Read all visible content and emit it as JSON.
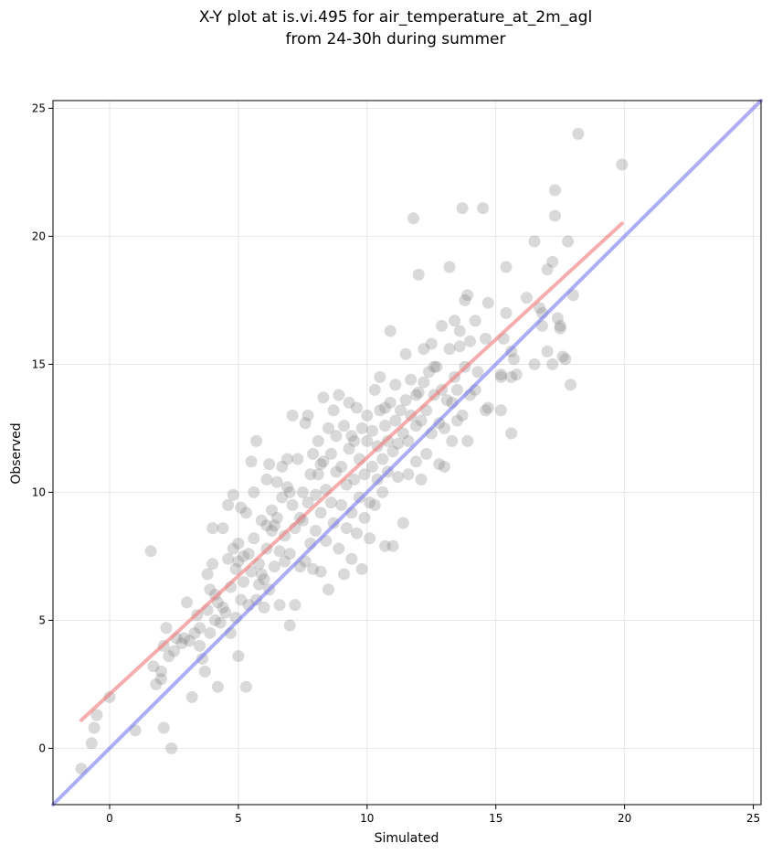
{
  "chart_data": {
    "type": "scatter",
    "title_lines": [
      "X-Y plot at is.vi.495 for air_temperature_at_2m_agl",
      "from 24-30h during summer"
    ],
    "xlabel": "Simulated",
    "ylabel": "Observed",
    "xlim": [
      -2.2,
      25.3
    ],
    "ylim": [
      -2.2,
      25.3
    ],
    "xticks": [
      0,
      5,
      10,
      15,
      20,
      25
    ],
    "yticks": [
      0,
      5,
      10,
      15,
      20,
      25
    ],
    "grid": true,
    "colors": {
      "points": "#808080",
      "identity_line": "#7777ee",
      "fit_line": "#ee7777",
      "grid": "#e6e6e6"
    },
    "identity_line": {
      "x": [
        -2.2,
        25.3
      ],
      "y": [
        -2.2,
        25.3
      ]
    },
    "fit_line": {
      "x": [
        -1.1,
        19.9
      ],
      "y": [
        1.1,
        20.5
      ]
    },
    "points": [
      [
        -1.1,
        -0.8
      ],
      [
        -0.7,
        0.2
      ],
      [
        -0.6,
        0.8
      ],
      [
        -0.5,
        1.3
      ],
      [
        0.0,
        2.0
      ],
      [
        1.0,
        0.7
      ],
      [
        1.6,
        7.7
      ],
      [
        1.7,
        3.2
      ],
      [
        1.8,
        2.5
      ],
      [
        2.0,
        3.0
      ],
      [
        2.0,
        2.7
      ],
      [
        2.1,
        0.8
      ],
      [
        2.1,
        4.0
      ],
      [
        2.2,
        4.7
      ],
      [
        2.3,
        3.6
      ],
      [
        2.4,
        0.0
      ],
      [
        2.5,
        3.8
      ],
      [
        2.6,
        4.3
      ],
      [
        2.8,
        4.1
      ],
      [
        2.9,
        4.3
      ],
      [
        3.0,
        5.7
      ],
      [
        3.1,
        4.2
      ],
      [
        3.2,
        2.0
      ],
      [
        3.3,
        4.5
      ],
      [
        3.4,
        5.2
      ],
      [
        3.5,
        4.0
      ],
      [
        3.5,
        4.7
      ],
      [
        3.6,
        3.5
      ],
      [
        3.7,
        3.0
      ],
      [
        3.8,
        5.4
      ],
      [
        3.8,
        6.8
      ],
      [
        3.9,
        4.5
      ],
      [
        3.9,
        6.2
      ],
      [
        4.0,
        7.2
      ],
      [
        4.0,
        8.6
      ],
      [
        4.1,
        5.0
      ],
      [
        4.2,
        5.7
      ],
      [
        4.2,
        2.4
      ],
      [
        4.3,
        4.9
      ],
      [
        4.4,
        5.5
      ],
      [
        4.4,
        8.6
      ],
      [
        4.5,
        5.3
      ],
      [
        4.6,
        7.4
      ],
      [
        4.6,
        9.5
      ],
      [
        4.7,
        4.5
      ],
      [
        4.7,
        6.3
      ],
      [
        4.8,
        7.8
      ],
      [
        4.8,
        9.9
      ],
      [
        4.9,
        5.1
      ],
      [
        4.9,
        7.0
      ],
      [
        5.0,
        3.6
      ],
      [
        5.0,
        8.0
      ],
      [
        5.1,
        5.8
      ],
      [
        5.1,
        9.4
      ],
      [
        5.2,
        6.5
      ],
      [
        5.2,
        7.5
      ],
      [
        5.3,
        2.4
      ],
      [
        5.3,
        9.2
      ],
      [
        5.4,
        5.6
      ],
      [
        5.4,
        7.6
      ],
      [
        5.5,
        6.9
      ],
      [
        5.5,
        11.2
      ],
      [
        5.6,
        8.2
      ],
      [
        5.6,
        10.0
      ],
      [
        5.7,
        5.8
      ],
      [
        5.7,
        12.0
      ],
      [
        5.8,
        6.4
      ],
      [
        5.8,
        7.2
      ],
      [
        5.9,
        6.8
      ],
      [
        5.9,
        8.9
      ],
      [
        6.0,
        5.5
      ],
      [
        6.0,
        6.6
      ],
      [
        6.1,
        7.8
      ],
      [
        6.1,
        10.5
      ],
      [
        6.2,
        6.2
      ],
      [
        6.2,
        11.1
      ],
      [
        6.3,
        8.5
      ],
      [
        6.3,
        9.3
      ],
      [
        6.4,
        7.1
      ],
      [
        6.4,
        8.7
      ],
      [
        6.5,
        9.0
      ],
      [
        6.5,
        10.4
      ],
      [
        6.6,
        5.6
      ],
      [
        6.6,
        7.7
      ],
      [
        6.7,
        9.8
      ],
      [
        6.7,
        11.0
      ],
      [
        6.8,
        7.3
      ],
      [
        6.8,
        8.3
      ],
      [
        6.9,
        10.2
      ],
      [
        6.9,
        11.3
      ],
      [
        7.0,
        4.8
      ],
      [
        7.0,
        7.6
      ],
      [
        7.1,
        9.5
      ],
      [
        7.1,
        13.0
      ],
      [
        7.2,
        5.6
      ],
      [
        7.2,
        8.6
      ],
      [
        7.3,
        11.3
      ],
      [
        7.4,
        7.1
      ],
      [
        7.4,
        9.0
      ],
      [
        7.5,
        8.9
      ],
      [
        7.5,
        10.0
      ],
      [
        7.6,
        12.7
      ],
      [
        7.6,
        7.3
      ],
      [
        7.7,
        9.6
      ],
      [
        7.7,
        13.0
      ],
      [
        7.8,
        8.0
      ],
      [
        7.8,
        10.7
      ],
      [
        7.9,
        11.5
      ],
      [
        7.9,
        7.0
      ],
      [
        8.0,
        8.5
      ],
      [
        8.0,
        9.9
      ],
      [
        8.1,
        10.7
      ],
      [
        8.1,
        12.0
      ],
      [
        8.2,
        6.9
      ],
      [
        8.2,
        9.2
      ],
      [
        8.3,
        11.2
      ],
      [
        8.3,
        13.7
      ],
      [
        8.4,
        8.1
      ],
      [
        8.4,
        10.1
      ],
      [
        8.5,
        12.5
      ],
      [
        8.5,
        6.2
      ],
      [
        8.6,
        9.6
      ],
      [
        8.6,
        11.5
      ],
      [
        8.7,
        13.2
      ],
      [
        8.7,
        8.8
      ],
      [
        8.8,
        10.8
      ],
      [
        8.8,
        12.2
      ],
      [
        8.9,
        13.8
      ],
      [
        8.9,
        7.8
      ],
      [
        9.0,
        9.5
      ],
      [
        9.0,
        11.0
      ],
      [
        9.1,
        12.6
      ],
      [
        9.1,
        6.8
      ],
      [
        9.2,
        8.6
      ],
      [
        9.2,
        10.3
      ],
      [
        9.3,
        11.7
      ],
      [
        9.3,
        13.5
      ],
      [
        9.4,
        7.4
      ],
      [
        9.4,
        9.2
      ],
      [
        9.5,
        10.5
      ],
      [
        9.5,
        12.0
      ],
      [
        9.6,
        13.3
      ],
      [
        9.6,
        8.4
      ],
      [
        9.7,
        9.8
      ],
      [
        9.7,
        11.3
      ],
      [
        9.8,
        12.5
      ],
      [
        9.8,
        7.0
      ],
      [
        9.9,
        9.0
      ],
      [
        9.9,
        10.7
      ],
      [
        10.0,
        12.0
      ],
      [
        10.0,
        13.0
      ],
      [
        10.1,
        8.2
      ],
      [
        10.1,
        9.6
      ],
      [
        10.2,
        11.0
      ],
      [
        10.2,
        12.4
      ],
      [
        10.3,
        14.0
      ],
      [
        10.3,
        9.5
      ],
      [
        10.4,
        10.5
      ],
      [
        10.4,
        11.8
      ],
      [
        10.5,
        13.2
      ],
      [
        10.5,
        14.5
      ],
      [
        10.6,
        10.0
      ],
      [
        10.6,
        11.3
      ],
      [
        10.7,
        12.6
      ],
      [
        10.7,
        7.9
      ],
      [
        10.8,
        10.8
      ],
      [
        10.8,
        12.0
      ],
      [
        10.9,
        13.5
      ],
      [
        10.9,
        16.3
      ],
      [
        11.0,
        7.9
      ],
      [
        11.0,
        11.6
      ],
      [
        11.1,
        12.8
      ],
      [
        11.1,
        14.2
      ],
      [
        11.2,
        10.6
      ],
      [
        11.2,
        11.9
      ],
      [
        11.3,
        13.2
      ],
      [
        11.4,
        8.8
      ],
      [
        11.4,
        12.3
      ],
      [
        11.5,
        13.6
      ],
      [
        11.5,
        15.4
      ],
      [
        11.6,
        10.7
      ],
      [
        11.6,
        12.0
      ],
      [
        11.7,
        13.0
      ],
      [
        11.7,
        14.4
      ],
      [
        11.8,
        20.7
      ],
      [
        11.9,
        11.2
      ],
      [
        11.9,
        12.6
      ],
      [
        12.0,
        13.9
      ],
      [
        12.0,
        18.5
      ],
      [
        12.1,
        10.5
      ],
      [
        12.1,
        12.8
      ],
      [
        12.2,
        14.3
      ],
      [
        12.2,
        15.6
      ],
      [
        12.3,
        11.5
      ],
      [
        12.3,
        13.2
      ],
      [
        12.4,
        14.7
      ],
      [
        12.5,
        15.8
      ],
      [
        12.5,
        12.3
      ],
      [
        12.6,
        13.8
      ],
      [
        12.7,
        14.9
      ],
      [
        12.8,
        11.1
      ],
      [
        12.8,
        12.7
      ],
      [
        12.9,
        14.0
      ],
      [
        12.9,
        16.5
      ],
      [
        13.0,
        11.0
      ],
      [
        13.0,
        12.5
      ],
      [
        13.1,
        13.6
      ],
      [
        13.2,
        15.6
      ],
      [
        13.2,
        18.8
      ],
      [
        13.3,
        12.0
      ],
      [
        13.3,
        13.5
      ],
      [
        13.4,
        14.5
      ],
      [
        13.4,
        16.7
      ],
      [
        13.5,
        12.8
      ],
      [
        13.5,
        14.0
      ],
      [
        13.6,
        15.7
      ],
      [
        13.6,
        16.3
      ],
      [
        13.7,
        13.0
      ],
      [
        13.7,
        21.1
      ],
      [
        13.8,
        14.9
      ],
      [
        13.8,
        17.5
      ],
      [
        13.9,
        12.0
      ],
      [
        13.9,
        17.7
      ],
      [
        14.0,
        13.8
      ],
      [
        14.0,
        15.9
      ],
      [
        14.2,
        14.0
      ],
      [
        14.2,
        16.7
      ],
      [
        14.3,
        14.7
      ],
      [
        14.5,
        21.1
      ],
      [
        14.6,
        13.2
      ],
      [
        14.6,
        16.0
      ],
      [
        14.7,
        13.3
      ],
      [
        14.7,
        17.4
      ],
      [
        15.2,
        13.2
      ],
      [
        15.2,
        14.5
      ],
      [
        15.3,
        16.0
      ],
      [
        15.4,
        17.0
      ],
      [
        15.4,
        18.8
      ],
      [
        15.6,
        15.5
      ],
      [
        15.6,
        14.5
      ],
      [
        15.6,
        12.3
      ],
      [
        15.7,
        15.2
      ],
      [
        15.8,
        14.6
      ],
      [
        16.2,
        17.6
      ],
      [
        16.5,
        15.0
      ],
      [
        16.5,
        19.8
      ],
      [
        16.7,
        17.2
      ],
      [
        16.8,
        17.0
      ],
      [
        16.8,
        16.5
      ],
      [
        17.0,
        15.5
      ],
      [
        17.0,
        18.7
      ],
      [
        17.2,
        19.0
      ],
      [
        17.2,
        15.0
      ],
      [
        17.3,
        20.8
      ],
      [
        17.3,
        21.8
      ],
      [
        17.4,
        16.8
      ],
      [
        17.5,
        16.4
      ],
      [
        17.6,
        15.3
      ],
      [
        17.7,
        15.2
      ],
      [
        17.8,
        19.8
      ],
      [
        17.9,
        14.2
      ],
      [
        18.0,
        17.7
      ],
      [
        18.2,
        24.0
      ],
      [
        19.9,
        22.8
      ],
      [
        17.5,
        16.5
      ],
      [
        15.2,
        14.6
      ],
      [
        12.6,
        14.9
      ],
      [
        11.9,
        13.8
      ],
      [
        10.7,
        13.3
      ],
      [
        9.4,
        12.2
      ],
      [
        8.2,
        11.1
      ],
      [
        7.0,
        10.0
      ],
      [
        6.1,
        8.7
      ],
      [
        5.0,
        7.3
      ],
      [
        4.1,
        6.0
      ]
    ]
  }
}
